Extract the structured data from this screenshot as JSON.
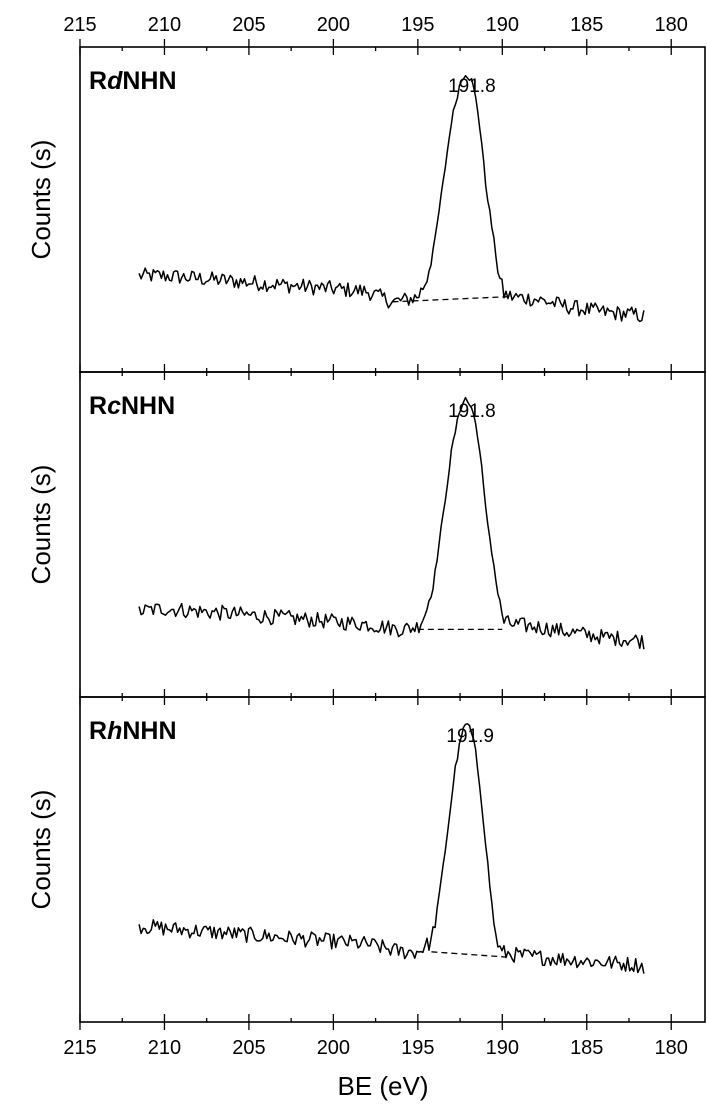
{
  "chart_data": {
    "type": "line",
    "xlabel": "BE (eV)",
    "xlim": [
      215,
      178
    ],
    "x_reversed": true,
    "xticks": [
      215,
      210,
      205,
      200,
      195,
      190,
      185,
      180
    ],
    "shared_x_axis_top_and_bottom": true,
    "panels": [
      {
        "label_prefix": "R",
        "label_italic": "d",
        "label_suffix": "NHN",
        "ylabel": "Counts (s)",
        "peak_label": "191.8",
        "series": [
          {
            "x": [
              211.5,
              210,
              208,
              206,
              204,
              202,
              200,
              198,
              196.5,
              195.5,
              195,
              194.5,
              194,
              193.5,
              193,
              192.5,
              192.2,
              191.8,
              191.5,
              191.2,
              191,
              190.6,
              190.2,
              189.9,
              189.5,
              188,
              186,
              184,
              182,
              181.5
            ],
            "y": [
              0.22,
              0.22,
              0.21,
              0.2,
              0.19,
              0.18,
              0.17,
              0.16,
              0.12,
              0.13,
              0.14,
              0.2,
              0.35,
              0.58,
              0.82,
              0.96,
              1.0,
              0.97,
              0.88,
              0.72,
              0.58,
              0.4,
              0.22,
              0.15,
              0.14,
              0.13,
              0.1,
              0.08,
              0.07,
              0.06
            ]
          },
          {
            "name": "baseline",
            "x": [
              196.5,
              189.5
            ],
            "y": [
              0.12,
              0.14
            ]
          }
        ]
      },
      {
        "label_prefix": "R",
        "label_italic": "c",
        "label_suffix": "NHN",
        "ylabel": "Counts (s)",
        "peak_label": "191.8",
        "series": [
          {
            "x": [
              211.5,
              210,
              208,
              206,
              204,
              202,
              200,
              198,
              196,
              195,
              194.5,
              194,
              193.5,
              193,
              192.5,
              192.2,
              191.8,
              191.5,
              191.2,
              191,
              190.6,
              190.2,
              189.9,
              189.5,
              188,
              186,
              184,
              182,
              181.5
            ],
            "y": [
              0.18,
              0.19,
              0.18,
              0.17,
              0.16,
              0.15,
              0.14,
              0.13,
              0.11,
              0.12,
              0.18,
              0.32,
              0.55,
              0.8,
              0.96,
              1.0,
              0.96,
              0.88,
              0.72,
              0.58,
              0.4,
              0.22,
              0.14,
              0.13,
              0.12,
              0.1,
              0.08,
              0.07,
              0.06
            ]
          },
          {
            "name": "baseline",
            "x": [
              195,
              190
            ],
            "y": [
              0.11,
              0.11
            ]
          }
        ]
      },
      {
        "label_prefix": "R",
        "label_italic": "h",
        "label_suffix": "NHN",
        "ylabel": "Counts (s)",
        "peak_label": "191.9",
        "series": [
          {
            "x": [
              211.5,
              210,
              208,
              206,
              204,
              202,
              200,
              198,
              196,
              195,
              194.2,
              193.8,
              193.3,
              192.8,
              192.4,
              192.1,
              191.9,
              191.6,
              191.3,
              191,
              190.7,
              190.4,
              190.1,
              189.5,
              188,
              186,
              184,
              182,
              181.5
            ],
            "y": [
              0.22,
              0.21,
              0.2,
              0.19,
              0.18,
              0.17,
              0.16,
              0.15,
              0.12,
              0.12,
              0.16,
              0.3,
              0.55,
              0.82,
              0.96,
              1.0,
              0.98,
              0.9,
              0.74,
              0.55,
              0.35,
              0.18,
              0.12,
              0.11,
              0.1,
              0.09,
              0.08,
              0.07,
              0.06
            ]
          },
          {
            "name": "baseline",
            "x": [
              194.2,
              189.8
            ],
            "y": [
              0.12,
              0.1
            ]
          }
        ]
      }
    ]
  }
}
